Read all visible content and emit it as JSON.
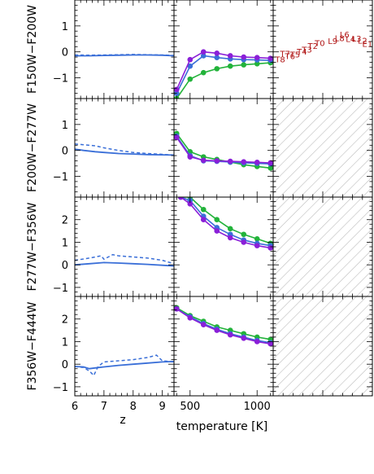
{
  "colors": {
    "blue": "#3a6fd8",
    "purple": "#8a1fd8",
    "green": "#22b33a",
    "red_label": "#b01515",
    "hatch": "#bdbdbd"
  },
  "chart_data": {
    "type": "line",
    "layout": "4x3 panel grid",
    "xlabels": {
      "left": "z",
      "middle": "temperature [K]"
    },
    "axes": {
      "left_x": {
        "range": [
          6,
          9.4
        ],
        "ticks": [
          "6",
          "7",
          "8",
          "9"
        ]
      },
      "middle_x": {
        "range": [
          380,
          1120
        ],
        "ticks": [
          "500",
          "1000"
        ]
      }
    },
    "rows": [
      {
        "ylabel": "F150W−F200W",
        "ylim": [
          -1.8,
          2.0
        ],
        "yticks": [
          "1",
          "0",
          "−1"
        ],
        "z_solid": {
          "x": [
            6.0,
            6.5,
            7.0,
            7.5,
            8.0,
            8.5,
            9.0,
            9.4
          ],
          "y": [
            -0.15,
            -0.15,
            -0.14,
            -0.13,
            -0.12,
            -0.12,
            -0.13,
            -0.15
          ]
        },
        "z_dashed": {
          "x": [
            6.0,
            6.5,
            7.0,
            7.5,
            8.0,
            8.5,
            9.0,
            9.4
          ],
          "y": [
            -0.12,
            -0.13,
            -0.12,
            -0.11,
            -0.1,
            -0.11,
            -0.12,
            -0.14
          ]
        },
        "temp_series": [
          {
            "color": "purple",
            "x": [
              400,
              500,
              600,
              700,
              800,
              900,
              1000,
              1100
            ],
            "y": [
              -1.45,
              -0.3,
              0.0,
              -0.05,
              -0.15,
              -0.2,
              -0.22,
              -0.25
            ]
          },
          {
            "color": "blue",
            "x": [
              400,
              500,
              600,
              700,
              800,
              900,
              1000,
              1100
            ],
            "y": [
              -1.6,
              -0.55,
              -0.15,
              -0.22,
              -0.27,
              -0.3,
              -0.31,
              -0.33
            ]
          },
          {
            "color": "green",
            "x": [
              400,
              500,
              600,
              700,
              800,
              900,
              1000,
              1100
            ],
            "y": [
              -1.8,
              -1.05,
              -0.8,
              -0.65,
              -0.55,
              -0.5,
              -0.46,
              -0.42
            ]
          }
        ],
        "spectral_labels": [
          {
            "text": "T8",
            "x": 0.07,
            "y": -0.4
          },
          {
            "text": "T7",
            "x": 0.12,
            "y": -0.18
          },
          {
            "text": "T6",
            "x": 0.17,
            "y": -0.28
          },
          {
            "text": "T5",
            "x": 0.22,
            "y": -0.22
          },
          {
            "text": "T4",
            "x": 0.29,
            "y": -0.1
          },
          {
            "text": "T3",
            "x": 0.34,
            "y": -0.02
          },
          {
            "text": "T2",
            "x": 0.4,
            "y": 0.12
          },
          {
            "text": "T0",
            "x": 0.47,
            "y": 0.22
          },
          {
            "text": "L9",
            "x": 0.6,
            "y": 0.3
          },
          {
            "text": "L8",
            "x": 0.67,
            "y": 0.42
          },
          {
            "text": "L6",
            "x": 0.72,
            "y": 0.55
          },
          {
            "text": "L4",
            "x": 0.78,
            "y": 0.38
          },
          {
            "text": "L3",
            "x": 0.84,
            "y": 0.4
          },
          {
            "text": "L2",
            "x": 0.9,
            "y": 0.32
          },
          {
            "text": "E1",
            "x": 0.95,
            "y": 0.2
          }
        ]
      },
      {
        "ylabel": "F200W−F277W",
        "ylim": [
          -1.8,
          2.0
        ],
        "yticks": [
          "1",
          "0",
          "−1"
        ],
        "z_solid": {
          "x": [
            6.0,
            6.3,
            6.7,
            7.0,
            7.5,
            8.0,
            8.5,
            9.0,
            9.4
          ],
          "y": [
            0.05,
            0.0,
            -0.05,
            -0.08,
            -0.12,
            -0.14,
            -0.16,
            -0.17,
            -0.18
          ]
        },
        "z_dashed": {
          "x": [
            6.0,
            6.3,
            6.7,
            7.0,
            7.5,
            8.0,
            8.5,
            9.0,
            9.4
          ],
          "y": [
            0.25,
            0.22,
            0.18,
            0.1,
            0.0,
            -0.08,
            -0.12,
            -0.15,
            -0.18
          ]
        },
        "temp_series": [
          {
            "color": "purple",
            "x": [
              400,
              500,
              600,
              700,
              800,
              900,
              1000,
              1100
            ],
            "y": [
              0.5,
              -0.25,
              -0.38,
              -0.4,
              -0.42,
              -0.44,
              -0.46,
              -0.48
            ]
          },
          {
            "color": "blue",
            "x": [
              400,
              500,
              600,
              700,
              800,
              900,
              1000,
              1100
            ],
            "y": [
              0.55,
              -0.2,
              -0.4,
              -0.42,
              -0.45,
              -0.48,
              -0.5,
              -0.52
            ]
          },
          {
            "color": "green",
            "x": [
              400,
              500,
              600,
              700,
              800,
              900,
              1000,
              1100
            ],
            "y": [
              0.65,
              -0.05,
              -0.25,
              -0.35,
              -0.45,
              -0.55,
              -0.62,
              -0.68
            ]
          }
        ]
      },
      {
        "ylabel": "F277W−F356W",
        "ylim": [
          -1.4,
          3.0
        ],
        "yticks": [
          "2",
          "1",
          "0",
          "−1"
        ],
        "z_solid": {
          "x": [
            6.0,
            6.5,
            7.0,
            7.5,
            8.0,
            8.5,
            9.0,
            9.4
          ],
          "y": [
            0.0,
            0.05,
            0.1,
            0.08,
            0.05,
            0.02,
            -0.02,
            -0.05
          ]
        },
        "z_dashed": {
          "x": [
            6.0,
            6.5,
            6.9,
            7.0,
            7.3,
            7.5,
            8.0,
            8.5,
            9.0,
            9.4
          ],
          "y": [
            0.2,
            0.3,
            0.4,
            0.25,
            0.45,
            0.4,
            0.35,
            0.3,
            0.2,
            0.05
          ]
        },
        "temp_series": [
          {
            "color": "purple",
            "x": [
              430,
              500,
              600,
              700,
              800,
              900,
              1000,
              1100
            ],
            "y": [
              3.0,
              2.7,
              2.0,
              1.5,
              1.2,
              1.0,
              0.85,
              0.75
            ]
          },
          {
            "color": "blue",
            "x": [
              430,
              500,
              600,
              700,
              800,
              900,
              1000,
              1100
            ],
            "y": [
              3.0,
              2.85,
              2.15,
              1.65,
              1.35,
              1.1,
              0.95,
              0.85
            ]
          },
          {
            "color": "green",
            "x": [
              430,
              500,
              600,
              700,
              800,
              900,
              1000,
              1100
            ],
            "y": [
              3.0,
              3.0,
              2.45,
              2.0,
              1.6,
              1.35,
              1.15,
              0.95
            ]
          }
        ]
      },
      {
        "ylabel": "F356W−F444W",
        "ylim": [
          -1.4,
          3.0
        ],
        "yticks": [
          "2",
          "1",
          "0",
          "−1"
        ],
        "z_solid": {
          "x": [
            6.0,
            6.3,
            6.5,
            6.8,
            7.0,
            7.5,
            8.0,
            8.5,
            9.0,
            9.4
          ],
          "y": [
            -0.1,
            -0.12,
            -0.2,
            -0.15,
            -0.12,
            -0.05,
            0.0,
            0.05,
            0.1,
            0.12
          ]
        },
        "z_dashed": {
          "x": [
            6.0,
            6.3,
            6.5,
            6.65,
            6.8,
            7.0,
            7.5,
            8.0,
            8.5,
            8.8,
            9.0,
            9.4
          ],
          "y": [
            -0.1,
            -0.15,
            -0.3,
            -0.5,
            -0.1,
            0.1,
            0.15,
            0.2,
            0.3,
            0.4,
            0.15,
            0.1
          ]
        },
        "temp_series": [
          {
            "color": "purple",
            "x": [
              400,
              500,
              600,
              700,
              800,
              900,
              1000,
              1100
            ],
            "y": [
              2.45,
              2.05,
              1.75,
              1.5,
              1.3,
              1.15,
              1.0,
              0.9
            ]
          },
          {
            "color": "blue",
            "x": [
              400,
              500,
              600,
              700,
              800,
              900,
              1000,
              1100
            ],
            "y": [
              2.45,
              2.1,
              1.8,
              1.55,
              1.35,
              1.2,
              1.05,
              0.95
            ]
          },
          {
            "color": "green",
            "x": [
              400,
              500,
              600,
              700,
              800,
              900,
              1000,
              1100
            ],
            "y": [
              2.5,
              2.15,
              1.9,
              1.65,
              1.5,
              1.35,
              1.2,
              1.1
            ]
          }
        ]
      }
    ]
  }
}
